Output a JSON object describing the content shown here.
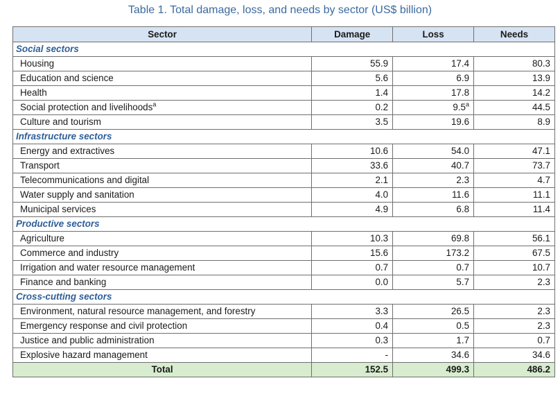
{
  "title": "Table 1. Total damage, loss, and needs by sector (US$ billion)",
  "columns": [
    "Sector",
    "Damage",
    "Loss",
    "Needs"
  ],
  "groups": [
    {
      "name": "Social sectors",
      "rows": [
        {
          "sector": "Housing",
          "sup": "",
          "damage": "55.9",
          "loss": "17.4",
          "loss_sup": "",
          "needs": "80.3"
        },
        {
          "sector": "Education and science",
          "sup": "",
          "damage": "5.6",
          "loss": "6.9",
          "loss_sup": "",
          "needs": "13.9"
        },
        {
          "sector": "Health",
          "sup": "",
          "damage": "1.4",
          "loss": "17.8",
          "loss_sup": "",
          "needs": "14.2"
        },
        {
          "sector": "Social protection and livelihoods",
          "sup": "a",
          "damage": "0.2",
          "loss": "9.5",
          "loss_sup": "a",
          "needs": "44.5"
        },
        {
          "sector": "Culture and tourism",
          "sup": "",
          "damage": "3.5",
          "loss": "19.6",
          "loss_sup": "",
          "needs": "8.9"
        }
      ]
    },
    {
      "name": "Infrastructure sectors",
      "rows": [
        {
          "sector": "Energy and extractives",
          "sup": "",
          "damage": "10.6",
          "loss": "54.0",
          "loss_sup": "",
          "needs": "47.1"
        },
        {
          "sector": "Transport",
          "sup": "",
          "damage": "33.6",
          "loss": "40.7",
          "loss_sup": "",
          "needs": "73.7"
        },
        {
          "sector": "Telecommunications and digital",
          "sup": "",
          "damage": "2.1",
          "loss": "2.3",
          "loss_sup": "",
          "needs": "4.7"
        },
        {
          "sector": "Water supply and sanitation",
          "sup": "",
          "damage": "4.0",
          "loss": "11.6",
          "loss_sup": "",
          "needs": "11.1"
        },
        {
          "sector": "Municipal services",
          "sup": "",
          "damage": "4.9",
          "loss": "6.8",
          "loss_sup": "",
          "needs": "11.4"
        }
      ]
    },
    {
      "name": "Productive sectors",
      "rows": [
        {
          "sector": "Agriculture",
          "sup": "",
          "damage": "10.3",
          "loss": "69.8",
          "loss_sup": "",
          "needs": "56.1"
        },
        {
          "sector": "Commerce and industry",
          "sup": "",
          "damage": "15.6",
          "loss": "173.2",
          "loss_sup": "",
          "needs": "67.5"
        },
        {
          "sector": "Irrigation and water resource management",
          "sup": "",
          "damage": "0.7",
          "loss": "0.7",
          "loss_sup": "",
          "needs": "10.7"
        },
        {
          "sector": "Finance and banking",
          "sup": "",
          "damage": "0.0",
          "loss": "5.7",
          "loss_sup": "",
          "needs": "2.3"
        }
      ]
    },
    {
      "name": "Cross-cutting sectors",
      "rows": [
        {
          "sector": "Environment, natural resource management, and forestry",
          "sup": "",
          "damage": "3.3",
          "loss": "26.5",
          "loss_sup": "",
          "needs": "2.3"
        },
        {
          "sector": "Emergency response and civil protection",
          "sup": "",
          "damage": "0.4",
          "loss": "0.5",
          "loss_sup": "",
          "needs": "2.3"
        },
        {
          "sector": "Justice and public administration",
          "sup": "",
          "damage": "0.3",
          "loss": "1.7",
          "loss_sup": "",
          "needs": "0.7"
        },
        {
          "sector": "Explosive hazard management",
          "sup": "",
          "damage": "-",
          "loss": "34.6",
          "loss_sup": "",
          "needs": "34.6"
        }
      ]
    }
  ],
  "total": {
    "label": "Total",
    "damage": "152.5",
    "loss": "499.3",
    "needs": "486.2"
  },
  "colors": {
    "header_bg": "#d6e3f3",
    "total_bg": "#d8eccf",
    "category_text": "#2e5f99",
    "title_text": "#3b6aa0"
  }
}
